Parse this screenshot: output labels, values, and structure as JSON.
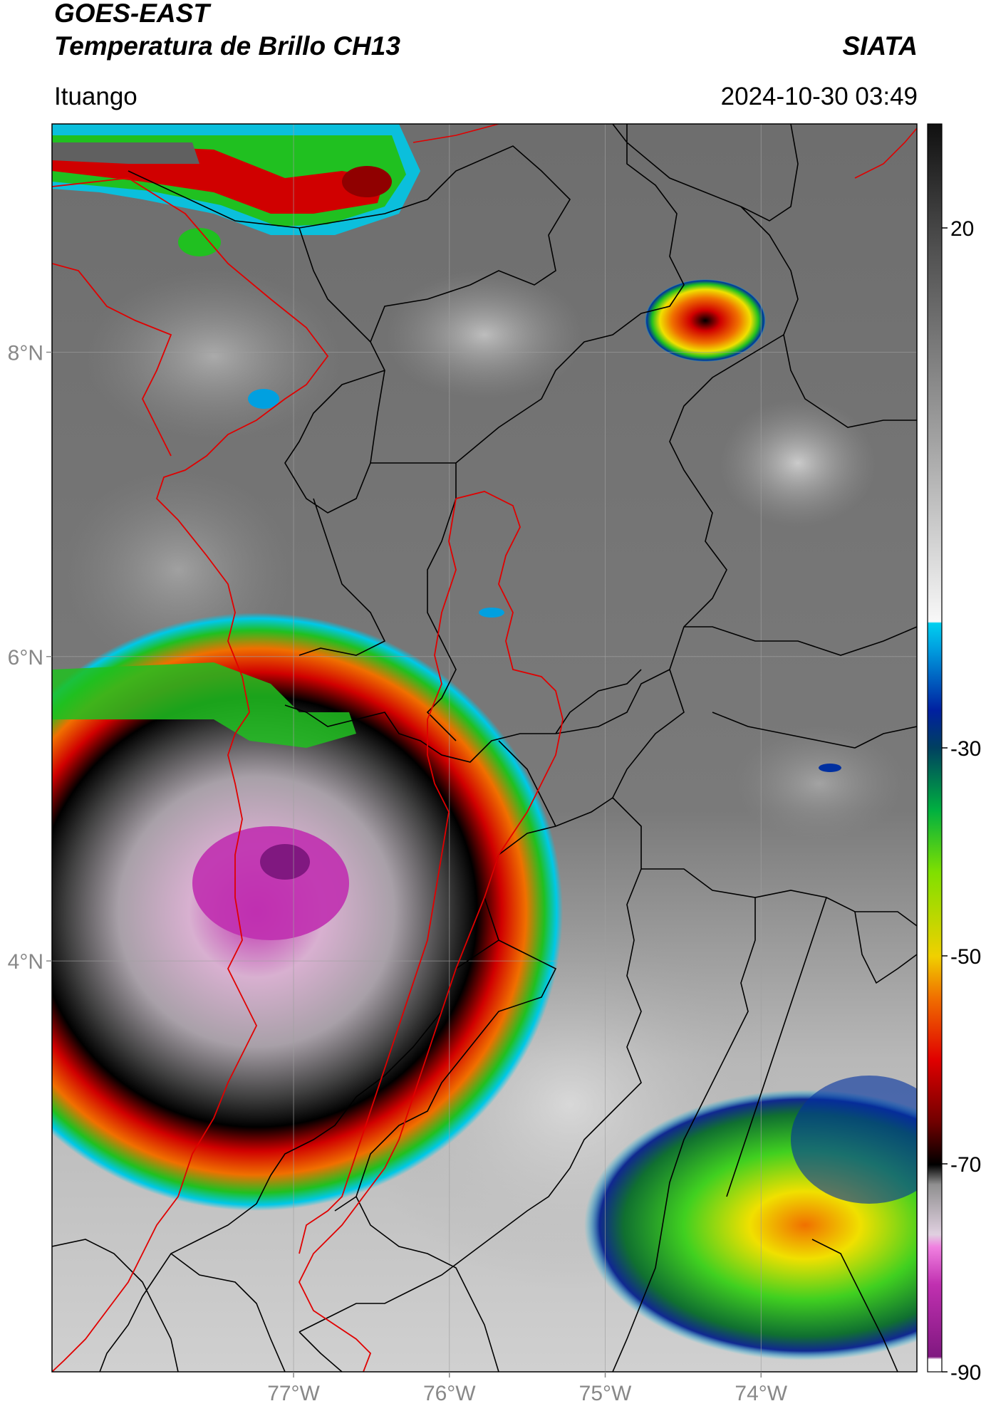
{
  "header": {
    "title_line1": "GOES-EAST",
    "title_line2": "Temperatura de Brillo CH13",
    "agency": "SIATA",
    "region": "Ituango",
    "datetime": "2024-10-30 03:49"
  },
  "map": {
    "lon_range": [
      -78.55,
      -73.0
    ],
    "lat_range": [
      1.3,
      9.5
    ],
    "lat_ticks": [
      {
        "value": 8,
        "label": "8°N"
      },
      {
        "value": 6,
        "label": "6°N"
      },
      {
        "value": 4,
        "label": "4°N"
      }
    ],
    "lon_ticks": [
      {
        "value": -77,
        "label": "77°W"
      },
      {
        "value": -76,
        "label": "76°W"
      },
      {
        "value": -75,
        "label": "75°W"
      },
      {
        "value": -74,
        "label": "74°W"
      }
    ],
    "gridlines": true
  },
  "colorbar": {
    "range": [
      -90,
      30
    ],
    "ticks": [
      {
        "value": 20,
        "label": "20"
      },
      {
        "value": -30,
        "label": "-30"
      },
      {
        "value": -50,
        "label": "-50"
      },
      {
        "value": -70,
        "label": "-70"
      },
      {
        "value": -90,
        "label": "-90"
      }
    ],
    "colors": {
      "cyan": "#00c8e8",
      "blue": "#102890",
      "green": "#20c020",
      "yellow": "#f0e000",
      "orange": "#f07800",
      "red": "#d80000",
      "black": "#000000",
      "magenta": "#c030b0",
      "purple": "#801880"
    }
  }
}
